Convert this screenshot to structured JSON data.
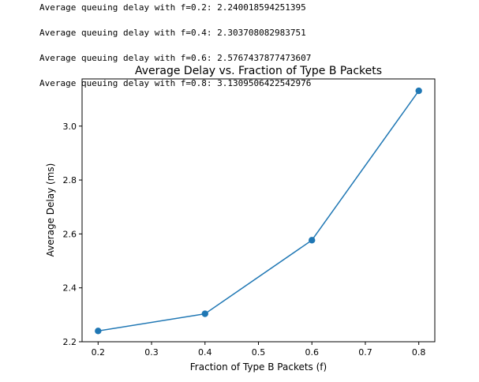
{
  "output_lines": [
    "Average queuing delay with f=0.2: 2.240018594251395",
    "Average queuing delay with f=0.4: 2.303708082983751",
    "Average queuing delay with f=0.6: 2.5767437877473607",
    "Average queuing delay with f=0.8: 3.1309506422542976"
  ],
  "chart_data": {
    "type": "line",
    "title": "Average Delay vs. Fraction of Type B Packets",
    "xlabel": "Fraction of Type B Packets (f)",
    "ylabel": "Average Delay (ms)",
    "x": [
      0.2,
      0.4,
      0.6,
      0.8
    ],
    "series": [
      {
        "values": [
          2.240018594251395,
          2.303708082983751,
          2.5767437877473607,
          3.1309506422542976
        ]
      }
    ],
    "xlim": [
      0.17,
      0.83
    ],
    "ylim": [
      2.2,
      3.175
    ],
    "xticks": [
      0.2,
      0.3,
      0.4,
      0.5,
      0.6,
      0.7,
      0.8
    ],
    "xtick_labels": [
      "0.2",
      "0.3",
      "0.4",
      "0.5",
      "0.6",
      "0.7",
      "0.8"
    ],
    "yticks": [
      2.2,
      2.4,
      2.6,
      2.8,
      3.0
    ],
    "ytick_labels": [
      "2.2",
      "2.4",
      "2.6",
      "2.8",
      "3.0"
    ],
    "grid": false,
    "marker": "circle",
    "color": "#1f77b4"
  }
}
